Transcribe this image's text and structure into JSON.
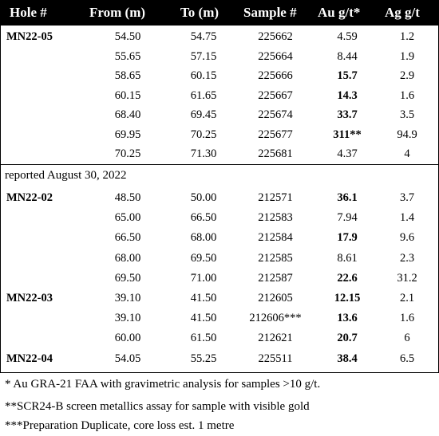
{
  "table": {
    "headers": [
      "Hole #",
      "From (m)",
      "To (m)",
      "Sample #",
      "Au g/t*",
      "Ag g/t"
    ],
    "group1": [
      {
        "hole": "MN22-05",
        "from": "54.50",
        "to": "54.75",
        "sample": "225662",
        "au": "4.59",
        "au_bold": false,
        "ag": "1.2"
      },
      {
        "hole": "",
        "from": "55.65",
        "to": "57.15",
        "sample": "225664",
        "au": "8.44",
        "au_bold": false,
        "ag": "1.9"
      },
      {
        "hole": "",
        "from": "58.65",
        "to": "60.15",
        "sample": "225666",
        "au": "15.7",
        "au_bold": true,
        "ag": "2.9"
      },
      {
        "hole": "",
        "from": "60.15",
        "to": "61.65",
        "sample": "225667",
        "au": "14.3",
        "au_bold": true,
        "ag": "1.6"
      },
      {
        "hole": "",
        "from": "68.40",
        "to": "69.45",
        "sample": "225674",
        "au": "33.7",
        "au_bold": true,
        "ag": "3.5"
      },
      {
        "hole": "",
        "from": "69.95",
        "to": "70.25",
        "sample": "225677",
        "au": "311**",
        "au_bold": true,
        "ag": "94.9"
      },
      {
        "hole": "",
        "from": "70.25",
        "to": "71.30",
        "sample": "225681",
        "au": "4.37",
        "au_bold": false,
        "ag": "4"
      }
    ],
    "section_label": "reported August 30, 2022",
    "group2": [
      {
        "hole": "MN22-02",
        "from": "48.50",
        "to": "50.00",
        "sample": "212571",
        "au": "36.1",
        "au_bold": true,
        "ag": "3.7"
      },
      {
        "hole": "",
        "from": "65.00",
        "to": "66.50",
        "sample": "212583",
        "au": "7.94",
        "au_bold": false,
        "ag": "1.4"
      },
      {
        "hole": "",
        "from": "66.50",
        "to": "68.00",
        "sample": "212584",
        "au": "17.9",
        "au_bold": true,
        "ag": "9.6"
      },
      {
        "hole": "",
        "from": "68.00",
        "to": "69.50",
        "sample": "212585",
        "au": "8.61",
        "au_bold": false,
        "ag": "2.3"
      },
      {
        "hole": "",
        "from": "69.50",
        "to": "71.00",
        "sample": "212587",
        "au": "22.6",
        "au_bold": true,
        "ag": "31.2"
      },
      {
        "hole": "MN22-03",
        "from": "39.10",
        "to": "41.50",
        "sample": "212605",
        "au": "12.15",
        "au_bold": true,
        "ag": "2.1"
      },
      {
        "hole": "",
        "from": "39.10",
        "to": "41.50",
        "sample": "212606***",
        "au": "13.6",
        "au_bold": true,
        "ag": "1.6"
      },
      {
        "hole": "",
        "from": "60.00",
        "to": "61.50",
        "sample": "212621",
        "au": "20.7",
        "au_bold": true,
        "ag": "6"
      },
      {
        "hole": "MN22-04",
        "from": "54.05",
        "to": "55.25",
        "sample": "225511",
        "au": "38.4",
        "au_bold": true,
        "ag": "6.5"
      }
    ]
  },
  "notes": [
    "* Au GRA-21 FAA with gravimetric analysis for samples >10 g/t.",
    "**SCR24-B screen metallics assay for sample with visible gold",
    "***Preparation Duplicate, core loss est. 1 metre"
  ]
}
